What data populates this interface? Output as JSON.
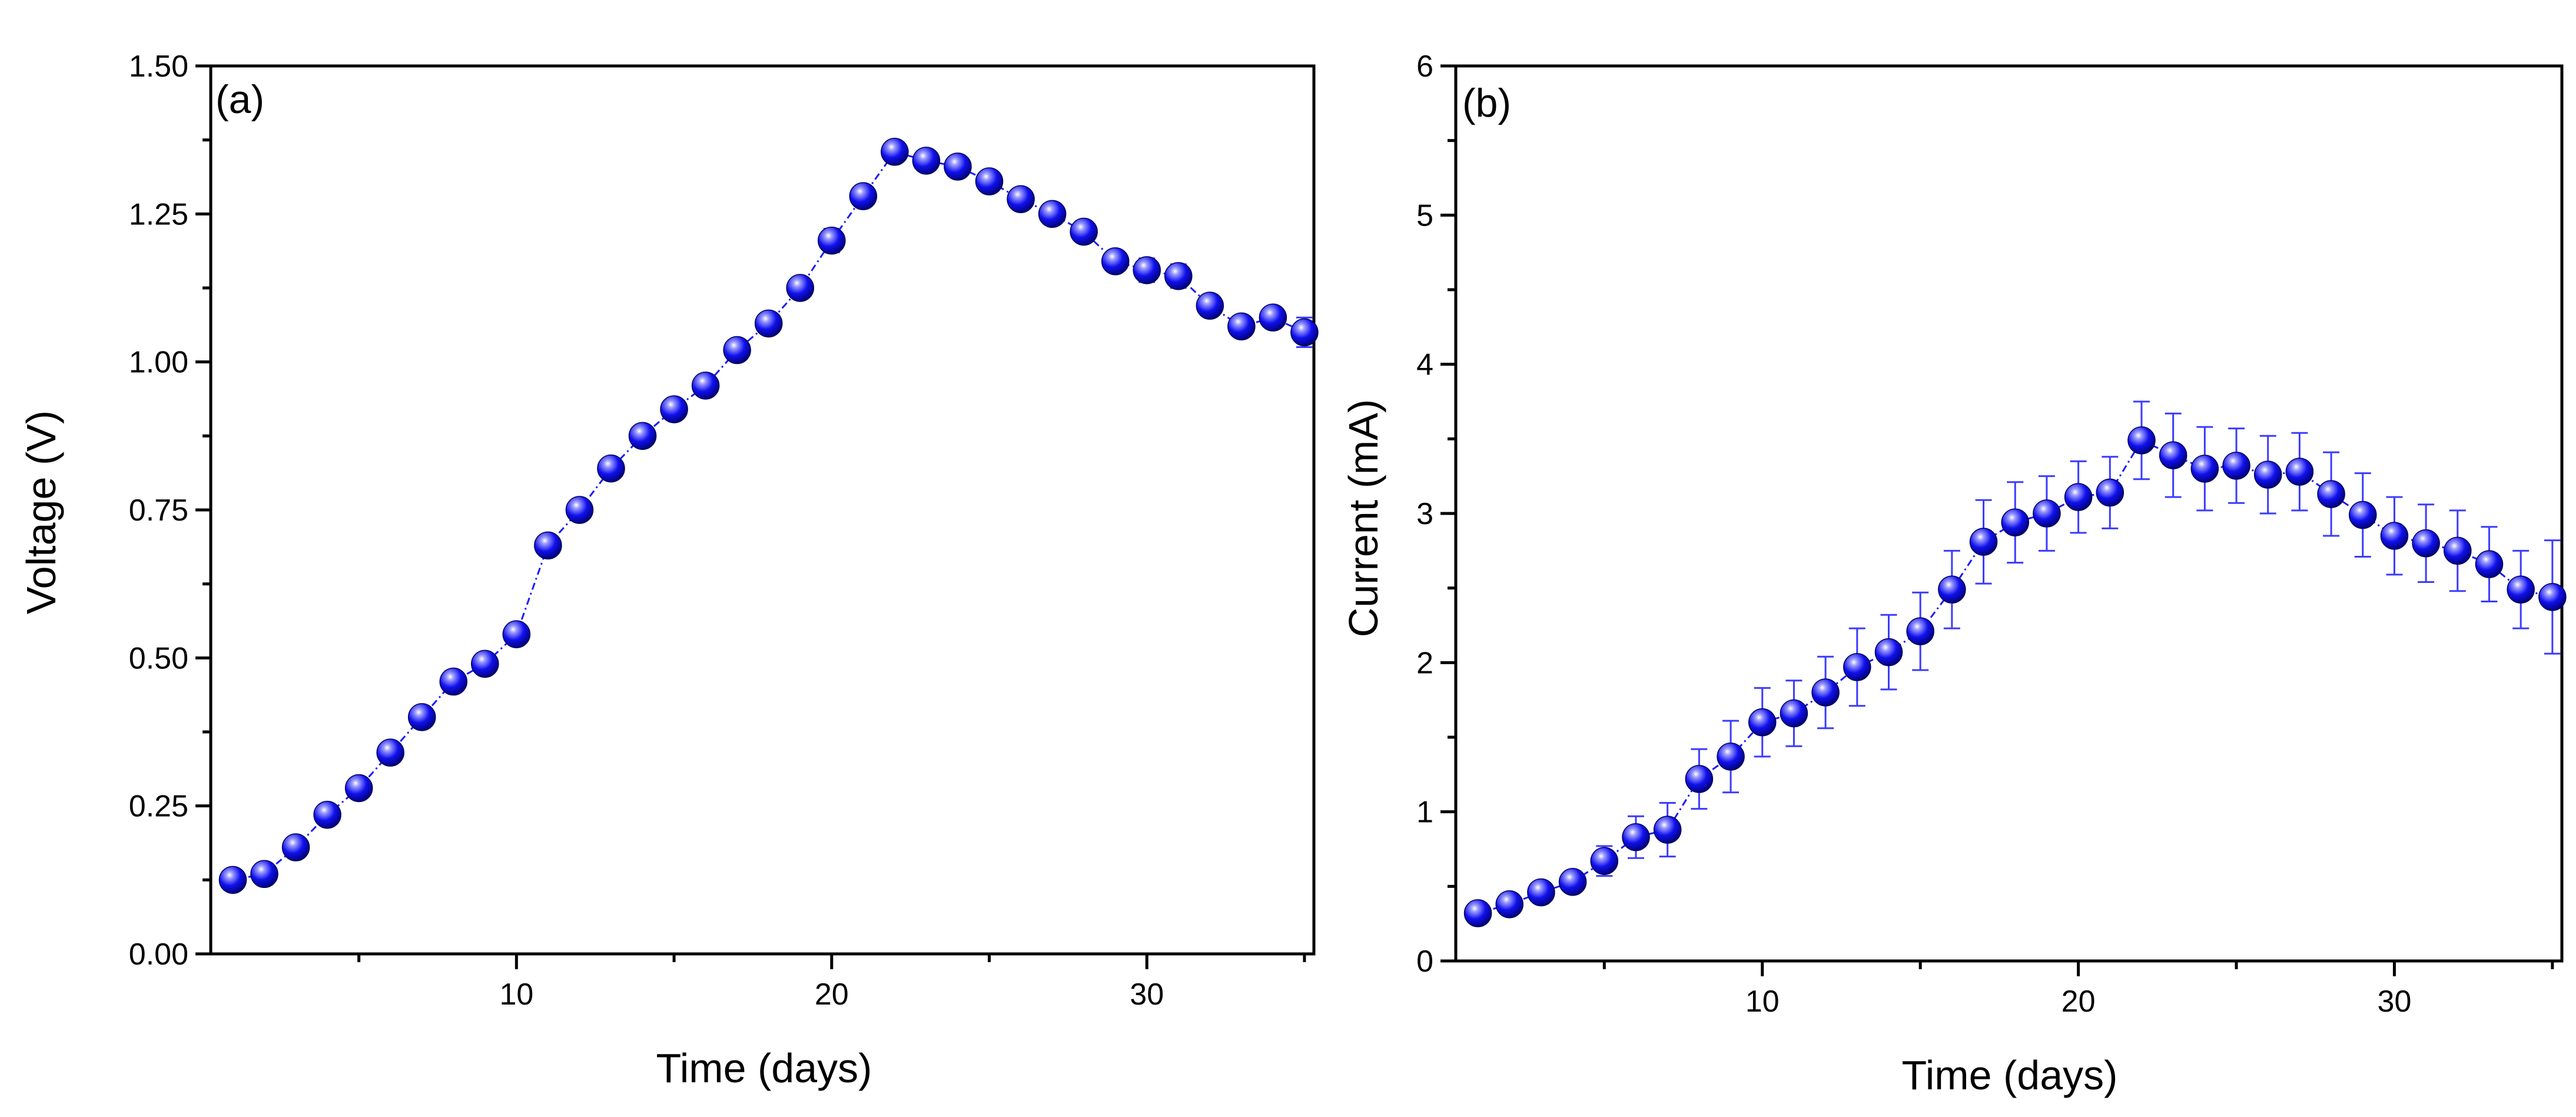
{
  "chart_data": [
    {
      "type": "scatter",
      "panel_label": "(a)",
      "xlabel": "Time (days)",
      "ylabel": "Voltage (V)",
      "xlim": [
        0.3,
        35.3
      ],
      "ylim": [
        0,
        1.5
      ],
      "x_ticks": [
        10,
        20,
        30
      ],
      "x_tick_labels": [
        "10",
        "20",
        "30"
      ],
      "y_ticks": [
        0,
        0.25,
        0.5,
        0.75,
        1.0,
        1.25,
        1.5
      ],
      "y_tick_labels": [
        "0.00",
        "0.25",
        "0.50",
        "0.75",
        "1.00",
        "1.25",
        "1.50"
      ],
      "marker_color": "#0000ee",
      "series": [
        {
          "name": "Voltage",
          "x": [
            1,
            2,
            3,
            4,
            5,
            6,
            7,
            8,
            9,
            10,
            11,
            12,
            13,
            14,
            15,
            16,
            17,
            18,
            19,
            20,
            21,
            22,
            23,
            24,
            25,
            26,
            27,
            28,
            29,
            30,
            31,
            32,
            33,
            34,
            35
          ],
          "y": [
            0.125,
            0.135,
            0.18,
            0.235,
            0.28,
            0.34,
            0.4,
            0.46,
            0.49,
            0.54,
            0.69,
            0.75,
            0.82,
            0.875,
            0.92,
            0.96,
            1.02,
            1.065,
            1.125,
            1.205,
            1.28,
            1.355,
            1.34,
            1.33,
            1.305,
            1.275,
            1.25,
            1.22,
            1.17,
            1.155,
            1.145,
            1.095,
            1.06,
            1.075,
            1.05
          ],
          "err": [
            0.012,
            0.012,
            0.012,
            0.012,
            0.012,
            0.012,
            0.012,
            0.012,
            0.012,
            0.012,
            0.012,
            0.012,
            0.012,
            0.012,
            0.015,
            0.018,
            0.015,
            0.015,
            0.015,
            0.02,
            0.018,
            0.015,
            0.015,
            0.015,
            0.015,
            0.015,
            0.015,
            0.015,
            0.015,
            0.02,
            0.02,
            0.015,
            0.015,
            0.015,
            0.025
          ]
        }
      ]
    },
    {
      "type": "scatter",
      "panel_label": "(b)",
      "xlabel": "Time (days)",
      "ylabel": "Current (mA)",
      "xlim": [
        0.3,
        35.3
      ],
      "ylim": [
        0,
        6
      ],
      "x_ticks": [
        10,
        20,
        30
      ],
      "x_tick_labels": [
        "10",
        "20",
        "30"
      ],
      "y_ticks": [
        0,
        1,
        2,
        3,
        4,
        5,
        6
      ],
      "y_tick_labels": [
        "0",
        "1",
        "2",
        "3",
        "4",
        "5",
        "6"
      ],
      "marker_color": "#0000ee",
      "series": [
        {
          "name": "Current",
          "x": [
            1,
            2,
            3,
            4,
            5,
            6,
            7,
            8,
            9,
            10,
            11,
            12,
            13,
            14,
            15,
            16,
            17,
            18,
            19,
            20,
            21,
            22,
            23,
            24,
            25,
            26,
            27,
            28,
            29,
            30,
            31,
            32,
            33,
            34,
            35
          ],
          "y": [
            0.32,
            0.38,
            0.46,
            0.53,
            0.67,
            0.83,
            0.88,
            1.22,
            1.37,
            1.6,
            1.66,
            1.8,
            1.97,
            2.07,
            2.21,
            2.49,
            2.81,
            2.94,
            3.0,
            3.11,
            3.14,
            3.49,
            3.39,
            3.3,
            3.32,
            3.26,
            3.28,
            3.13,
            2.99,
            2.85,
            2.8,
            2.75,
            2.66,
            2.49,
            2.44
          ],
          "err": [
            0.05,
            0.05,
            0.06,
            0.06,
            0.1,
            0.14,
            0.18,
            0.2,
            0.24,
            0.23,
            0.22,
            0.24,
            0.26,
            0.25,
            0.26,
            0.26,
            0.28,
            0.27,
            0.25,
            0.24,
            0.24,
            0.26,
            0.28,
            0.28,
            0.25,
            0.26,
            0.26,
            0.28,
            0.28,
            0.26,
            0.26,
            0.27,
            0.25,
            0.26,
            0.38
          ]
        }
      ]
    }
  ]
}
